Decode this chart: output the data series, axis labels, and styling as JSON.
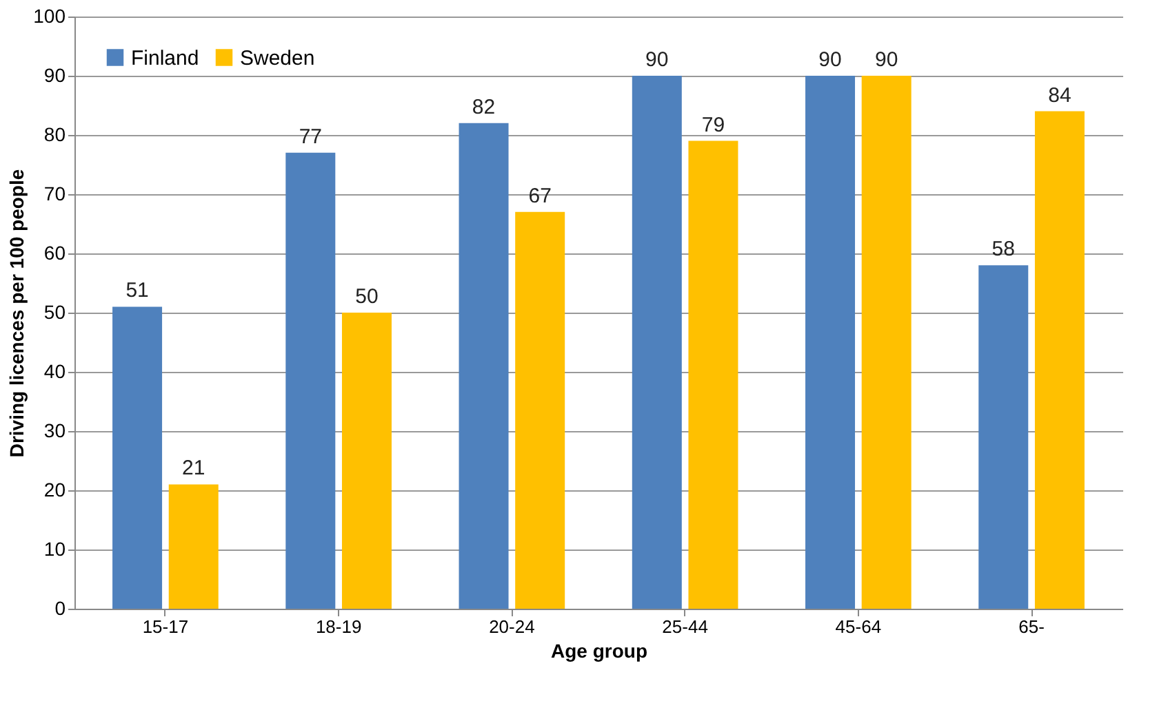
{
  "chart_data": {
    "type": "bar",
    "xlabel": "Age group",
    "ylabel": "Driving licences per 100 people",
    "categories": [
      "15-17",
      "18-19",
      "20-24",
      "25-44",
      "45-64",
      "65-"
    ],
    "series": [
      {
        "name": "Finland",
        "color": "#4f81bd",
        "values": [
          51,
          77,
          82,
          90,
          90,
          58
        ]
      },
      {
        "name": "Sweden",
        "color": "#ffc000",
        "values": [
          21,
          50,
          67,
          79,
          90,
          84
        ]
      }
    ],
    "ylim": [
      0,
      100
    ],
    "yticks": [
      0,
      10,
      20,
      30,
      40,
      50,
      60,
      70,
      80,
      90,
      100
    ],
    "grid": "y",
    "legend": "top left",
    "data_labels": true
  }
}
